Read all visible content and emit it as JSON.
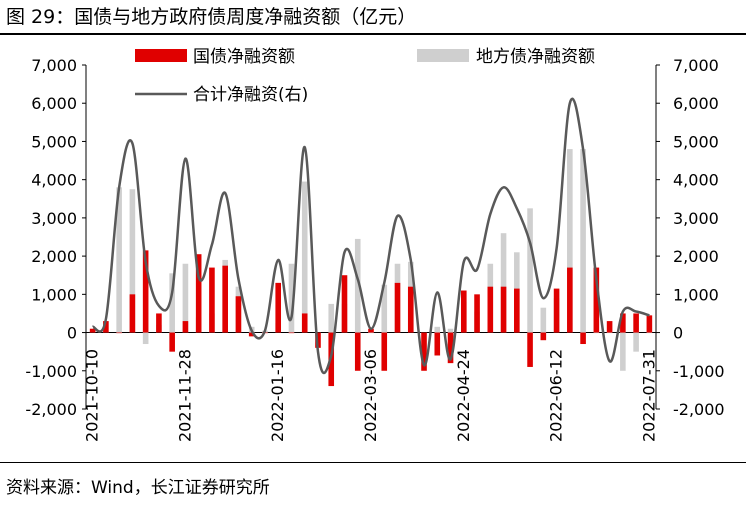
{
  "header": {
    "title": "图 29：国债与地方政府债周度净融资额（亿元）"
  },
  "footer": {
    "source": "资料来源：Wind，长江证券研究所"
  },
  "colors": {
    "gov_bond": "#e00000",
    "local_bond": "#cfcfcf",
    "total_line": "#595959"
  },
  "chart_data": {
    "type": "bar",
    "x": [
      "2021-10-10",
      "2021-10-17",
      "2021-10-24",
      "2021-10-31",
      "2021-11-07",
      "2021-11-14",
      "2021-11-21",
      "2021-11-28",
      "2021-12-05",
      "2021-12-12",
      "2021-12-19",
      "2021-12-26",
      "2022-01-02",
      "2022-01-09",
      "2022-01-16",
      "2022-01-23",
      "2022-01-30",
      "2022-02-06",
      "2022-02-13",
      "2022-02-20",
      "2022-02-27",
      "2022-03-06",
      "2022-03-13",
      "2022-03-20",
      "2022-03-27",
      "2022-04-03",
      "2022-04-10",
      "2022-04-17",
      "2022-04-24",
      "2022-05-01",
      "2022-05-08",
      "2022-05-15",
      "2022-05-22",
      "2022-05-29",
      "2022-06-05",
      "2022-06-12",
      "2022-06-19",
      "2022-06-26",
      "2022-07-03",
      "2022-07-10",
      "2022-07-17",
      "2022-07-24",
      "2022-07-31"
    ],
    "tick_labels": [
      "2021-10-10",
      "2021-11-28",
      "2022-01-16",
      "2022-03-06",
      "2022-04-24",
      "2022-06-12",
      "2022-07-31"
    ],
    "series": [
      {
        "name": "国债净融资额",
        "axis": "left",
        "values": [
          100,
          300,
          0,
          1000,
          2150,
          500,
          -500,
          300,
          2050,
          1700,
          1750,
          950,
          -100,
          0,
          1300,
          0,
          500,
          -400,
          -1400,
          1500,
          -1000,
          100,
          -1000,
          1300,
          1200,
          -1000,
          -600,
          -800,
          1100,
          1000,
          1200,
          1200,
          1150,
          -900,
          -200,
          1150,
          1700,
          -300,
          1700,
          300,
          500,
          500,
          450
        ],
        "note": ""
      },
      {
        "name": "地方债净融资额",
        "axis": "left",
        "values": [
          50,
          50,
          3800,
          3750,
          -300,
          200,
          1550,
          1800,
          400,
          500,
          1900,
          1200,
          150,
          50,
          250,
          1800,
          3950,
          0,
          750,
          750,
          2450,
          0,
          1250,
          1800,
          1850,
          0,
          150,
          100,
          800,
          550,
          1800,
          2600,
          2100,
          3250,
          650,
          900,
          4800,
          4800,
          0,
          0,
          -1000,
          -500,
          0
        ]
      },
      {
        "name": "合计净融资(右)",
        "axis": "right",
        "kind": "line",
        "values": [
          150,
          350,
          3800,
          4950,
          1850,
          700,
          1050,
          4550,
          1450,
          2300,
          3650,
          1400,
          50,
          50,
          1900,
          400,
          4850,
          -500,
          -600,
          2100,
          1400,
          100,
          1300,
          3050,
          1900,
          -850,
          1050,
          -700,
          1850,
          1650,
          3100,
          3800,
          3250,
          2350,
          900,
          2200,
          6000,
          4800,
          1400,
          -750,
          550,
          550,
          450
        ]
      }
    ],
    "ylim_left": [
      -2000,
      7000
    ],
    "ylim_right": [
      -2000,
      7000
    ],
    "yticks_left": [
      "7,000",
      "6,000",
      "5,000",
      "4,000",
      "3,000",
      "2,000",
      "1,000",
      "0",
      "-1,000",
      "-2,000"
    ],
    "yticks_right": [
      "7,000",
      "6,000",
      "5,000",
      "4,000",
      "3,000",
      "2,000",
      "1,000",
      "0",
      "-1,000",
      "-2,000"
    ],
    "legend": [
      "国债净融资额",
      "地方债净融资额",
      "合计净融资(右)"
    ],
    "legend_placement": "top",
    "grid": false
  }
}
